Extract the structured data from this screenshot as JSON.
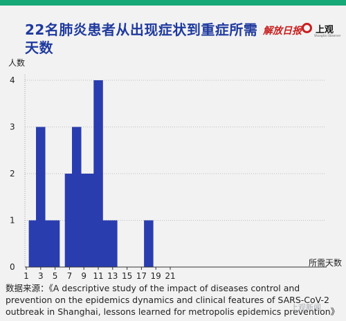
{
  "header": {
    "title": "22名肺炎患者从出现症状到重症所需天数",
    "logo_jfrb": "解放日报",
    "logo_sg": "上观",
    "logo_sg_sub": "Shanghai Observer"
  },
  "chart_data": {
    "type": "bar",
    "title": "22名肺炎患者从出现症状到重症所需天数",
    "xlabel": "所需天数",
    "ylabel": "人数",
    "x": [
      1,
      2,
      3,
      4,
      5,
      6,
      7,
      8,
      9,
      10,
      11,
      12,
      13,
      14,
      15,
      16,
      17,
      18,
      19,
      20,
      21
    ],
    "values": [
      0,
      1,
      3,
      1,
      1,
      0,
      2,
      3,
      2,
      2,
      4,
      1,
      1,
      0,
      0,
      0,
      0,
      1,
      0,
      0,
      0
    ],
    "xticks": [
      "1",
      "3",
      "5",
      "7",
      "9",
      "11",
      "13",
      "15",
      "17",
      "19",
      "21"
    ],
    "yticks": [
      "0",
      "1",
      "2",
      "3",
      "4"
    ],
    "ylim": [
      0,
      4
    ],
    "xlim": [
      1,
      21
    ],
    "grid": "horizontal dotted",
    "bar_color": "#2a3daf"
  },
  "source": {
    "text": "数据来源：《A descriptive study of the impact of diseases control and prevention on the epidemics dynamics and clinical features of SARS-CoV-2 outbreak in Shanghai, lessons learned for metropolis epidemics prevention》"
  },
  "watermark": "上观新闻"
}
